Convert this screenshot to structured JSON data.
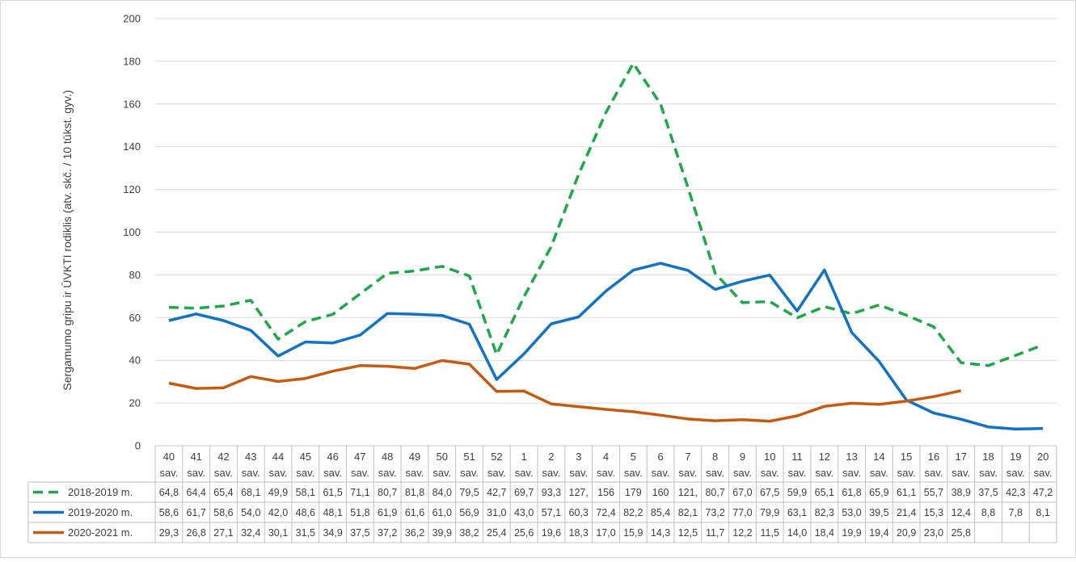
{
  "chart_data": {
    "type": "line",
    "ylabel": "Sergamumo gripu ir ŪVKTI rodiklis (atv. skč. / 10 tūkst. gyv.)",
    "ylim": [
      0,
      200
    ],
    "yticks": [
      0,
      20,
      40,
      60,
      80,
      100,
      120,
      140,
      160,
      180,
      200
    ],
    "grid": true,
    "legend": "table-bottom",
    "categories": [
      "40",
      "41",
      "42",
      "43",
      "44",
      "45",
      "46",
      "47",
      "48",
      "49",
      "50",
      "51",
      "52",
      "1",
      "2",
      "3",
      "4",
      "5",
      "6",
      "7",
      "8",
      "9",
      "10",
      "11",
      "12",
      "13",
      "14",
      "15",
      "16",
      "17",
      "18",
      "19",
      "20"
    ],
    "category_suffix": "sav.",
    "series": [
      {
        "name": "2018-2019 m.",
        "color": "#1ea84a",
        "dash": true,
        "values": [
          64.8,
          64.4,
          65.4,
          68.1,
          49.9,
          58.1,
          61.5,
          71.1,
          80.7,
          81.8,
          84.0,
          79.5,
          42.7,
          69.7,
          93.3,
          127,
          156,
          179,
          160,
          121,
          80.7,
          67.0,
          67.5,
          59.9,
          65.1,
          61.8,
          65.9,
          61.1,
          55.7,
          38.9,
          37.5,
          42.3,
          47.2
        ],
        "labels": [
          "64,8",
          "64,4",
          "65,4",
          "68,1",
          "49,9",
          "58,1",
          "61,5",
          "71,1",
          "80,7",
          "81,8",
          "84,0",
          "79,5",
          "42,7",
          "69,7",
          "93,3",
          "127,",
          "156",
          "179",
          "160",
          "121,",
          "80,7",
          "67,0",
          "67,5",
          "59,9",
          "65,1",
          "61,8",
          "65,9",
          "61,1",
          "55,7",
          "38,9",
          "37,5",
          "42,3",
          "47,2"
        ]
      },
      {
        "name": "2019-2020 m.",
        "color": "#1272c4",
        "dash": false,
        "values": [
          58.6,
          61.7,
          58.6,
          54.0,
          42.0,
          48.6,
          48.1,
          51.8,
          61.9,
          61.6,
          61.0,
          56.9,
          31.0,
          43.0,
          57.1,
          60.3,
          72.4,
          82.2,
          85.4,
          82.1,
          73.2,
          77.0,
          79.9,
          63.1,
          82.3,
          53.0,
          39.5,
          21.4,
          15.3,
          12.4,
          8.8,
          7.8,
          8.1
        ],
        "labels": [
          "58,6",
          "61,7",
          "58,6",
          "54,0",
          "42,0",
          "48,6",
          "48,1",
          "51,8",
          "61,9",
          "61,6",
          "61,0",
          "56,9",
          "31,0",
          "43,0",
          "57,1",
          "60,3",
          "72,4",
          "82,2",
          "85,4",
          "82,1",
          "73,2",
          "77,0",
          "79,9",
          "63,1",
          "82,3",
          "53,0",
          "39,5",
          "21,4",
          "15,3",
          "12,4",
          "8,8",
          "7,8",
          "8,1"
        ]
      },
      {
        "name": "2020-2021 m.",
        "color": "#c55a11",
        "dash": false,
        "values": [
          29.3,
          26.8,
          27.1,
          32.4,
          30.1,
          31.5,
          34.9,
          37.5,
          37.2,
          36.2,
          39.9,
          38.2,
          25.4,
          25.6,
          19.6,
          18.3,
          17.0,
          15.9,
          14.3,
          12.5,
          11.7,
          12.2,
          11.5,
          14.0,
          18.4,
          19.9,
          19.4,
          20.9,
          23.0,
          25.8,
          null,
          null,
          null
        ],
        "labels": [
          "29,3",
          "26,8",
          "27,1",
          "32,4",
          "30,1",
          "31,5",
          "34,9",
          "37,5",
          "37,2",
          "36,2",
          "39,9",
          "38,2",
          "25,4",
          "25,6",
          "19,6",
          "18,3",
          "17,0",
          "15,9",
          "14,3",
          "12,5",
          "11,7",
          "12,2",
          "11,5",
          "14,0",
          "18,4",
          "19,9",
          "19,4",
          "20,9",
          "23,0",
          "25,8",
          "",
          "",
          ""
        ]
      }
    ]
  }
}
